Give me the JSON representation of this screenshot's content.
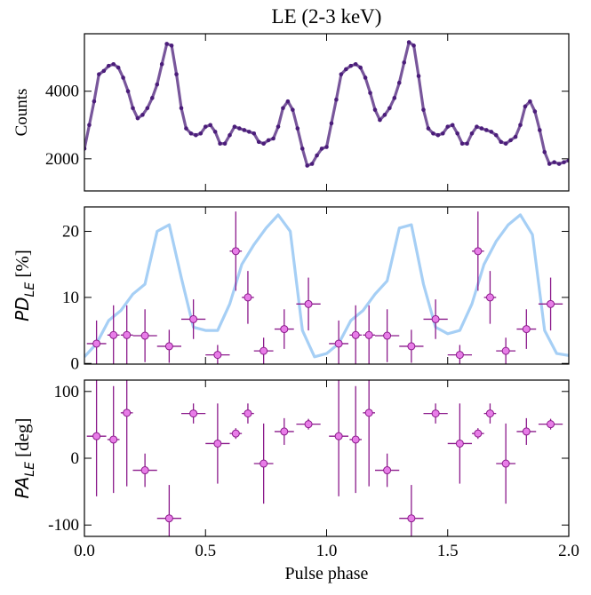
{
  "chart_data": [
    {
      "type": "line",
      "title": "LE (2-3 keV)",
      "ylabel": "Counts",
      "xlim": [
        0,
        2
      ],
      "xticks": [
        0,
        0.5,
        1,
        1.5,
        2
      ],
      "ylim": [
        1050,
        5700
      ],
      "yticks": [
        2000,
        4000
      ],
      "series": [
        {
          "style": "line",
          "color": "#4b1d7a",
          "x": [
            0,
            0.02,
            0.04,
            0.06,
            0.08,
            0.1,
            0.12,
            0.14,
            0.16,
            0.18,
            0.2,
            0.22,
            0.24,
            0.26,
            0.28,
            0.3,
            0.32,
            0.34,
            0.36,
            0.38,
            0.4,
            0.42,
            0.44,
            0.46,
            0.48,
            0.5,
            0.52,
            0.54,
            0.56,
            0.58,
            0.6,
            0.62,
            0.64,
            0.66,
            0.68,
            0.7,
            0.72,
            0.74,
            0.76,
            0.78,
            0.8,
            0.82,
            0.84,
            0.86,
            0.88,
            0.9,
            0.92,
            0.94,
            0.96,
            0.98,
            1,
            1.02,
            1.04,
            1.06,
            1.08,
            1.1,
            1.12,
            1.14,
            1.16,
            1.18,
            1.2,
            1.22,
            1.24,
            1.26,
            1.28,
            1.3,
            1.32,
            1.34,
            1.36,
            1.38,
            1.4,
            1.42,
            1.44,
            1.46,
            1.48,
            1.5,
            1.52,
            1.54,
            1.56,
            1.58,
            1.6,
            1.62,
            1.64,
            1.66,
            1.68,
            1.7,
            1.72,
            1.74,
            1.76,
            1.78,
            1.8,
            1.82,
            1.84,
            1.86,
            1.88,
            1.9,
            1.92,
            1.94,
            1.96,
            1.98,
            2
          ],
          "values": [
            2300,
            3000,
            3700,
            4500,
            4600,
            4750,
            4800,
            4700,
            4400,
            4000,
            3500,
            3200,
            3300,
            3500,
            3800,
            4200,
            4800,
            5400,
            5350,
            4500,
            3500,
            2900,
            2750,
            2700,
            2750,
            2950,
            3000,
            2800,
            2450,
            2450,
            2700,
            2950,
            2900,
            2850,
            2800,
            2750,
            2500,
            2450,
            2550,
            2600,
            2950,
            3500,
            3700,
            3450,
            2900,
            2300,
            1800,
            1850,
            2100,
            2300,
            2350,
            3050,
            3750,
            4500,
            4650,
            4750,
            4800,
            4700,
            4400,
            3950,
            3450,
            3150,
            3300,
            3500,
            3800,
            4250,
            4850,
            5450,
            5350,
            4450,
            3450,
            2900,
            2750,
            2700,
            2750,
            2950,
            3000,
            2750,
            2450,
            2450,
            2750,
            2950,
            2900,
            2850,
            2800,
            2700,
            2500,
            2450,
            2550,
            2650,
            3000,
            3550,
            3700,
            3400,
            2850,
            2200,
            1850,
            1900,
            1850,
            1900,
            1950
          ]
        }
      ]
    },
    {
      "type": "combo",
      "ylabel": {
        "main": "PD",
        "sub": "LE",
        "unit": " [%]"
      },
      "xlim": [
        0,
        2
      ],
      "xticks": [
        0,
        0.5,
        1,
        1.5,
        2
      ],
      "ylim": [
        -0.1,
        23.7
      ],
      "yticks": [
        0,
        10,
        20
      ],
      "series": [
        {
          "style": "line",
          "color": "#a6cff5",
          "x": [
            0,
            0.05,
            0.1,
            0.15,
            0.2,
            0.25,
            0.3,
            0.35,
            0.4,
            0.45,
            0.5,
            0.55,
            0.6,
            0.65,
            0.7,
            0.75,
            0.8,
            0.85,
            0.9,
            0.95,
            1,
            1.05,
            1.1,
            1.15,
            1.2,
            1.25,
            1.3,
            1.35,
            1.4,
            1.45,
            1.5,
            1.55,
            1.6,
            1.65,
            1.7,
            1.75,
            1.8,
            1.85,
            1.9,
            1.95,
            2
          ],
          "values": [
            1,
            3,
            6.5,
            8,
            10.5,
            12,
            20,
            21,
            13,
            5.5,
            5,
            5,
            9,
            15,
            18,
            20.5,
            22.5,
            20,
            5,
            1,
            1.5,
            3,
            6.5,
            8,
            10.5,
            12.5,
            20.5,
            21,
            12,
            5.5,
            4.5,
            5,
            9,
            15,
            18.5,
            21,
            22.5,
            19.5,
            5,
            1.5,
            1.2
          ]
        },
        {
          "style": "errorbar",
          "color": "#e87de8",
          "edgecolor": "#8b1a8b",
          "x": [
            0.05,
            0.12,
            0.175,
            0.25,
            0.35,
            0.45,
            0.55,
            0.625,
            0.675,
            0.74,
            0.825,
            0.925,
            1.05,
            1.12,
            1.175,
            1.25,
            1.35,
            1.45,
            1.55,
            1.625,
            1.675,
            1.74,
            1.825,
            1.925
          ],
          "xerr": [
            0.04,
            0.025,
            0.025,
            0.05,
            0.05,
            0.05,
            0.05,
            0.025,
            0.025,
            0.04,
            0.04,
            0.05,
            0.04,
            0.025,
            0.025,
            0.05,
            0.05,
            0.05,
            0.05,
            0.025,
            0.025,
            0.04,
            0.04,
            0.05
          ],
          "values": [
            3,
            4.3,
            4.3,
            4.2,
            2.6,
            6.7,
            1.3,
            17,
            10,
            1.9,
            5.2,
            9,
            3,
            4.3,
            4.3,
            4.2,
            2.6,
            6.7,
            1.3,
            17,
            10,
            1.9,
            5.2,
            9
          ],
          "yerr": [
            3.5,
            4.5,
            4.5,
            4,
            2.5,
            3,
            1.5,
            6,
            4,
            2,
            3,
            4,
            3.5,
            4.5,
            4.5,
            4,
            2.5,
            3,
            1.5,
            6,
            4,
            2,
            3,
            4
          ]
        }
      ]
    },
    {
      "type": "errorbar",
      "ylabel": {
        "main": "PA",
        "sub": "LE",
        "unit": " [deg]"
      },
      "xlabel": "Pulse phase",
      "xlim": [
        0,
        2
      ],
      "xticks": [
        {
          "value": 0,
          "label": "0.0"
        },
        {
          "value": 0.5,
          "label": "0.5"
        },
        {
          "value": 1,
          "label": "1.0"
        },
        {
          "value": 1.5,
          "label": "1.5"
        },
        {
          "value": 2,
          "label": "2.0"
        }
      ],
      "ylim": [
        -117,
        117
      ],
      "yticks": [
        -100,
        0,
        100
      ],
      "series": [
        {
          "style": "errorbar",
          "color": "#e87de8",
          "edgecolor": "#8b1a8b",
          "x": [
            0.05,
            0.12,
            0.175,
            0.25,
            0.35,
            0.45,
            0.55,
            0.625,
            0.675,
            0.74,
            0.825,
            0.925,
            1.05,
            1.12,
            1.175,
            1.25,
            1.35,
            1.45,
            1.55,
            1.625,
            1.675,
            1.74,
            1.825,
            1.925
          ],
          "xerr": [
            0.04,
            0.025,
            0.025,
            0.05,
            0.05,
            0.05,
            0.05,
            0.025,
            0.025,
            0.04,
            0.04,
            0.05,
            0.04,
            0.025,
            0.025,
            0.05,
            0.05,
            0.05,
            0.05,
            0.025,
            0.025,
            0.04,
            0.04,
            0.05
          ],
          "values": [
            33,
            28,
            68,
            -18,
            -90,
            67,
            22,
            37,
            67,
            -8,
            40,
            51,
            33,
            28,
            68,
            -18,
            -90,
            67,
            22,
            37,
            67,
            -8,
            40,
            51
          ],
          "yerr": [
            90,
            80,
            110,
            25,
            50,
            15,
            60,
            8,
            15,
            60,
            20,
            8,
            90,
            80,
            110,
            25,
            50,
            15,
            60,
            8,
            15,
            60,
            20,
            8
          ]
        }
      ]
    }
  ]
}
